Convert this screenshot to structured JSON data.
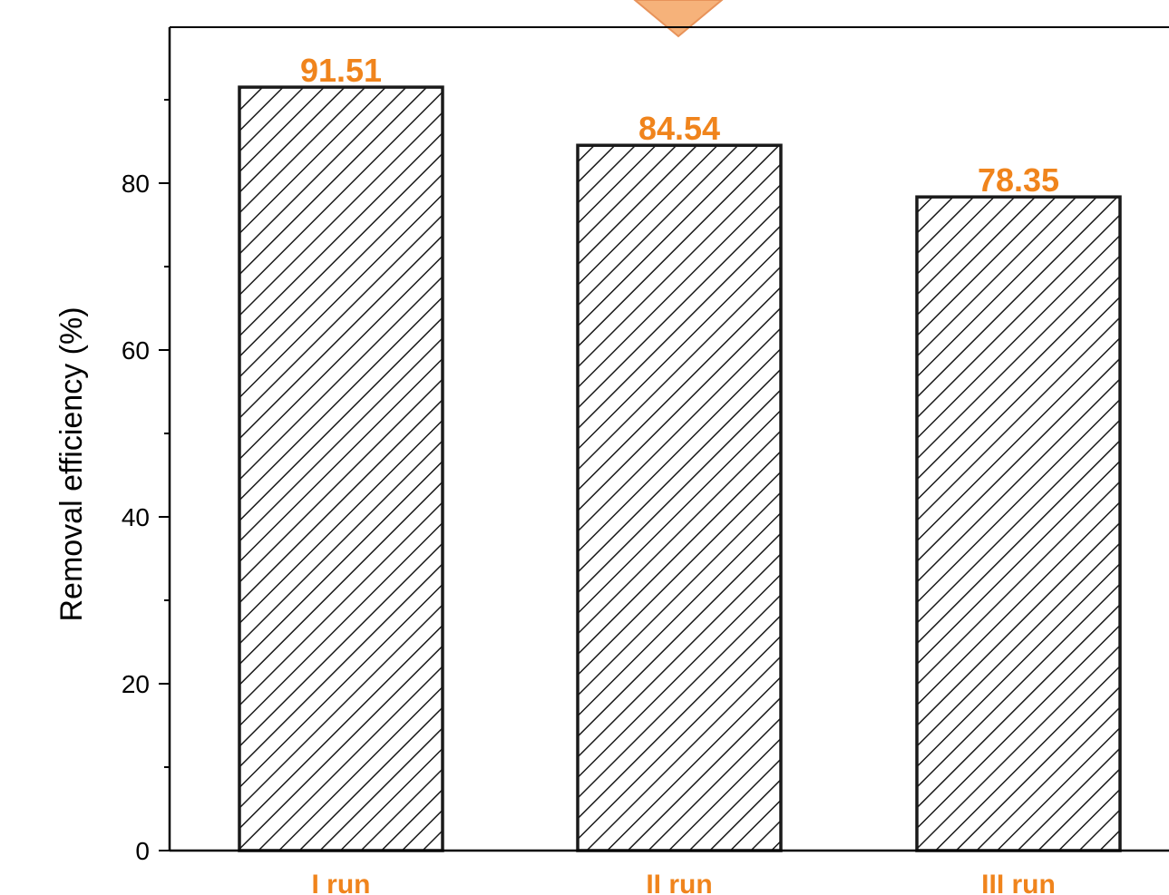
{
  "chart_data": {
    "type": "bar",
    "title": "",
    "xlabel": "",
    "ylabel": "Removal efficiency (%)",
    "categories": [
      "I run",
      "II run",
      "III run"
    ],
    "values": [
      91.51,
      84.54,
      78.35
    ],
    "value_labels": [
      "91.51",
      "84.54",
      "78.35"
    ],
    "ylim": [
      0,
      99
    ],
    "y_ticks": [
      0,
      20,
      40,
      60,
      80
    ],
    "y_tick_labels": [
      "0",
      "20",
      "40",
      "60",
      "80"
    ],
    "bar_fill": "hatched diagonal",
    "grid": false,
    "legend": "none"
  },
  "colors": {
    "accent": "#f0841c",
    "axis": "#000000",
    "bar_stroke": "#1a1a1a",
    "marker_fill": "#f6b27a"
  },
  "decoration": {
    "top_marker": "down-arrow-marker-icon"
  }
}
